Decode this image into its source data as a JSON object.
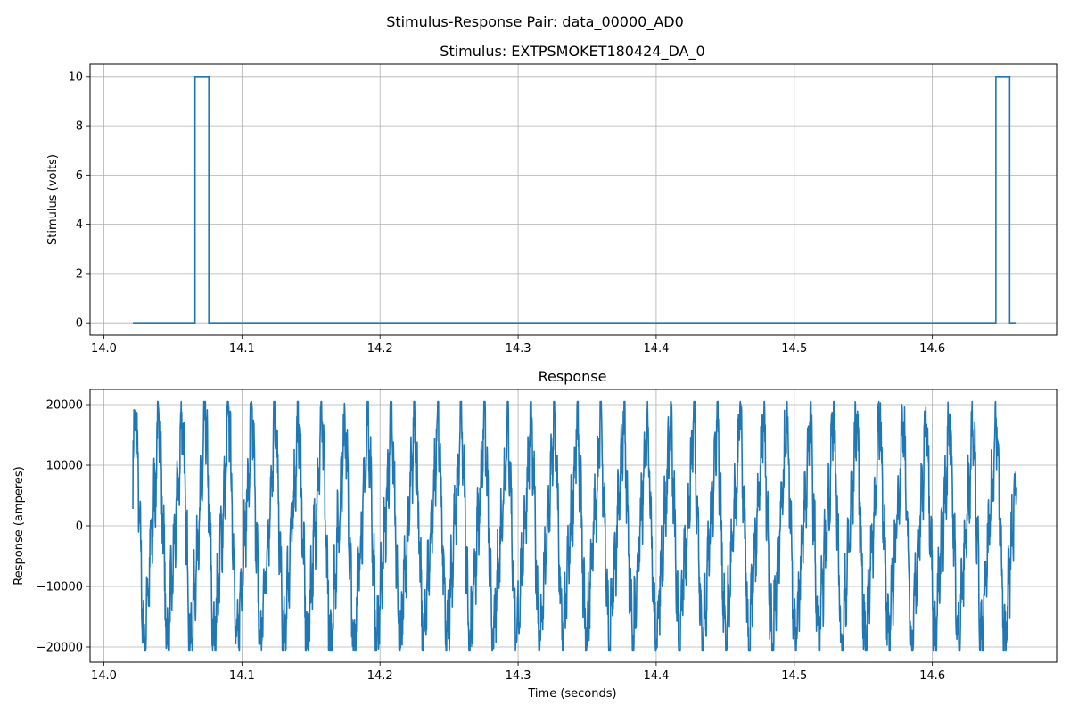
{
  "figure": {
    "suptitle": "Stimulus-Response Pair: data_00000_AD0"
  },
  "chart_data": [
    {
      "type": "line",
      "title": "Stimulus: EXTPSMOKET180424_DA_0",
      "xlabel": "",
      "ylabel": "Stimulus (volts)",
      "xlim": [
        13.99,
        14.69
      ],
      "ylim": [
        -0.5,
        10.5
      ],
      "xticks": [
        14.0,
        14.1,
        14.2,
        14.3,
        14.4,
        14.5,
        14.6
      ],
      "xtick_labels": [
        "14.0",
        "14.1",
        "14.2",
        "14.3",
        "14.4",
        "14.5",
        "14.6"
      ],
      "yticks": [
        0,
        2,
        4,
        6,
        8,
        10
      ],
      "ytick_labels": [
        "0",
        "2",
        "4",
        "6",
        "8",
        "10"
      ],
      "grid": true,
      "color": "#1f77b4",
      "series": [
        {
          "x": [
            14.021,
            14.066,
            14.066,
            14.076,
            14.076,
            14.646,
            14.646,
            14.656,
            14.656,
            14.661
          ],
          "y": [
            0,
            0,
            10,
            10,
            0,
            0,
            10,
            10,
            0,
            0
          ]
        }
      ]
    },
    {
      "type": "line",
      "title": "Response",
      "xlabel": "Time (seconds)",
      "ylabel": "Response (amperes)",
      "xlim": [
        13.99,
        14.69
      ],
      "ylim": [
        -22500,
        22500
      ],
      "xticks": [
        14.0,
        14.1,
        14.2,
        14.3,
        14.4,
        14.5,
        14.6
      ],
      "xtick_labels": [
        "14.0",
        "14.1",
        "14.2",
        "14.3",
        "14.4",
        "14.5",
        "14.6"
      ],
      "yticks": [
        -20000,
        -10000,
        0,
        10000,
        20000
      ],
      "ytick_labels": [
        "−20000",
        "−10000",
        "0",
        "10000",
        "20000"
      ],
      "grid": true,
      "color": "#1f77b4",
      "signal": {
        "t_start": 14.021,
        "t_end": 14.661,
        "cycles": 38,
        "amplitude_max": 20500,
        "amplitude_min": -20500
      }
    }
  ]
}
